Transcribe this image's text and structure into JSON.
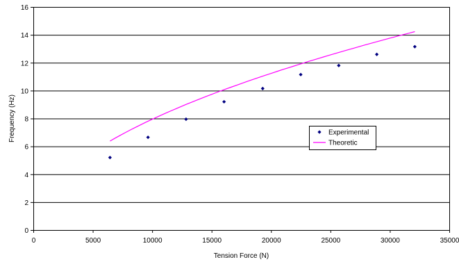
{
  "chart_data": {
    "type": "scatter",
    "title": "",
    "xlabel": "Tension Force (N)",
    "ylabel": "Frequency (Hz)",
    "xlim": [
      0,
      35000
    ],
    "ylim": [
      0,
      16
    ],
    "x_ticks": [
      "0",
      "5000",
      "10000",
      "15000",
      "20000",
      "25000",
      "30000",
      "35000"
    ],
    "y_ticks": [
      "0",
      "2",
      "4",
      "6",
      "8",
      "10",
      "12",
      "14",
      "16"
    ],
    "grid": "horizontal",
    "legend_position": "right-center",
    "series": [
      {
        "name": "Experimental",
        "style": "markers",
        "color": "#000080",
        "x": [
          6450,
          9650,
          12850,
          16050,
          19300,
          22500,
          25700,
          28900,
          32100
        ],
        "y": [
          5.2,
          6.65,
          7.95,
          9.2,
          10.15,
          11.15,
          11.8,
          12.6,
          13.15
        ]
      },
      {
        "name": "Theoretic",
        "style": "line",
        "color": "#ff00ff",
        "x": [
          6450,
          9650,
          12850,
          16050,
          19300,
          22500,
          25700,
          28900,
          32100
        ],
        "y": [
          6.38,
          7.8,
          9.0,
          10.06,
          11.03,
          11.91,
          12.73,
          13.5,
          14.23
        ]
      }
    ]
  }
}
